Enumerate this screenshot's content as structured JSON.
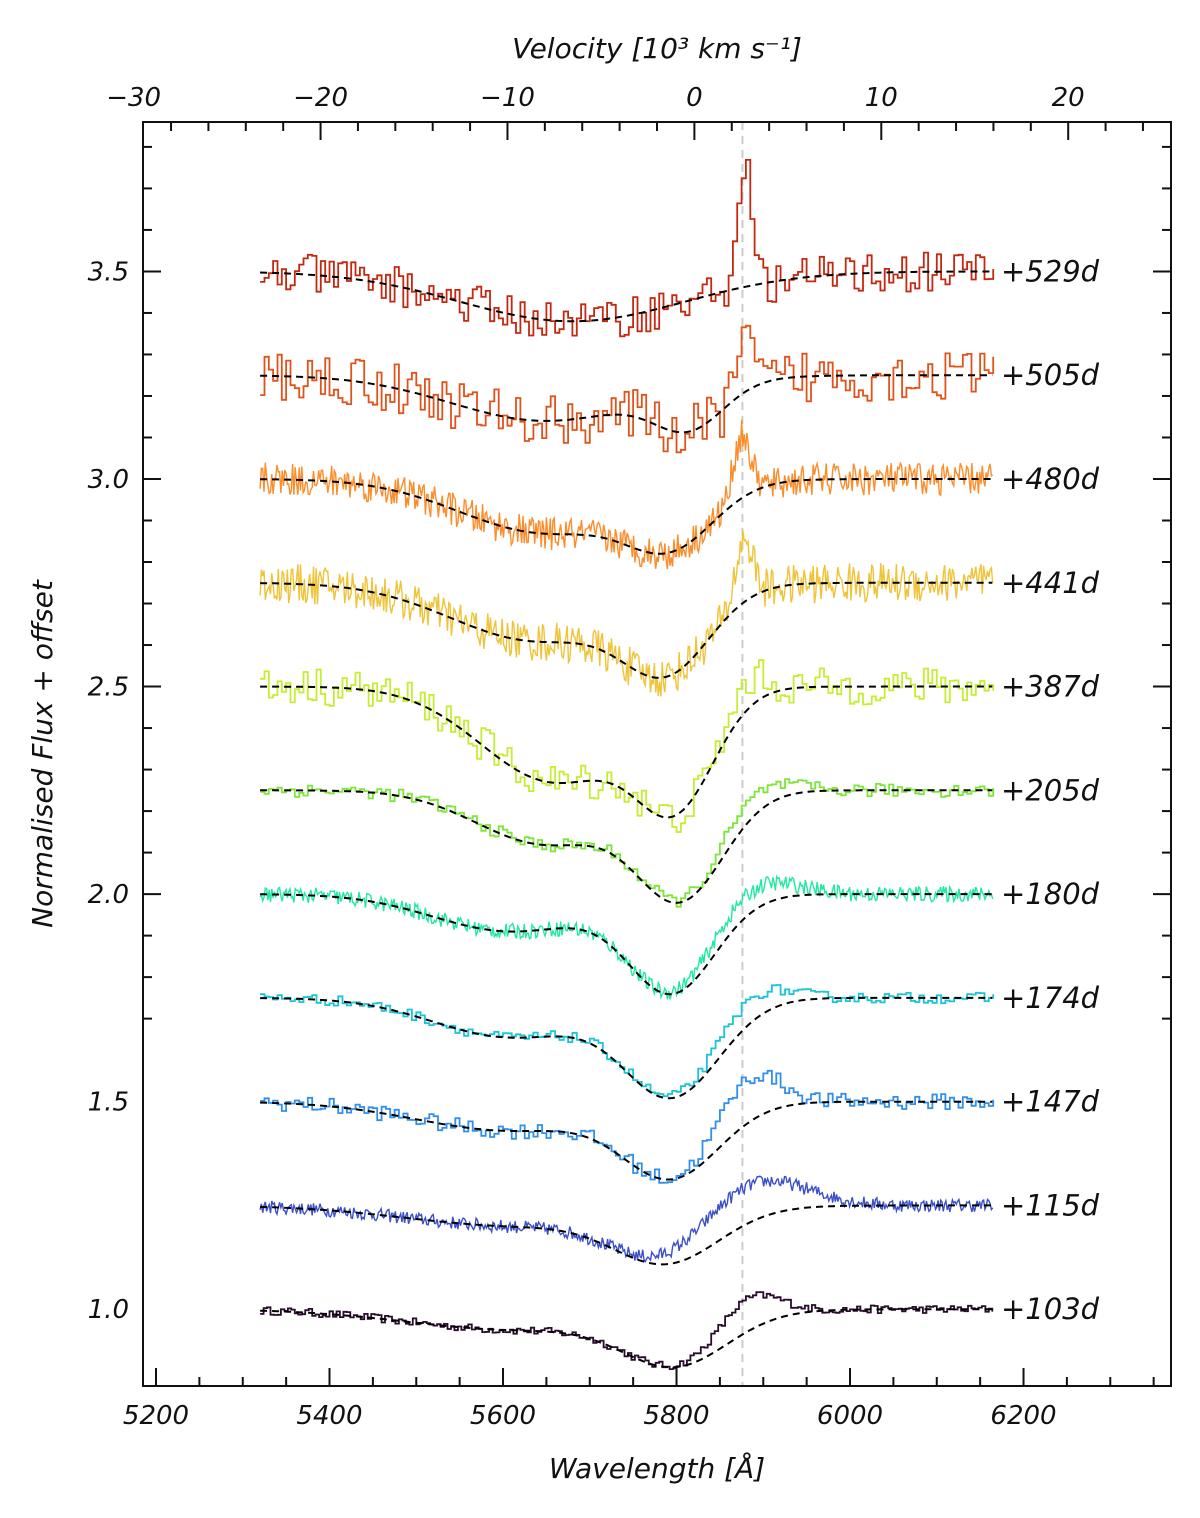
{
  "chart_data": {
    "type": "line",
    "title": "",
    "xlabel": "Wavelength [Å]",
    "ylabel": "Normalised Flux + offset",
    "top_xlabel": "Velocity [10³ km s⁻¹]",
    "xlim": [
      5185,
      6370
    ],
    "ylim": [
      0.815,
      3.86
    ],
    "top_xlim": [
      -29.5,
      25.5
    ],
    "x_ticks": [
      5200,
      5400,
      5600,
      5800,
      6000,
      6200
    ],
    "x_tick_labels": [
      "5200",
      "5400",
      "5600",
      "5800",
      "6000",
      "6200"
    ],
    "y_ticks": [
      1.0,
      1.5,
      2.0,
      2.5,
      3.0,
      3.5
    ],
    "y_tick_labels": [
      "1.0",
      "1.5",
      "2.0",
      "2.5",
      "3.0",
      "3.5"
    ],
    "top_ticks": [
      -30,
      -20,
      -10,
      0,
      10,
      20
    ],
    "top_tick_labels": [
      "−30",
      "−20",
      "−10",
      "0",
      "10",
      "20"
    ],
    "wavelength_range": [
      5320,
      6165
    ],
    "rest_wavelength": 5876,
    "series": [
      {
        "name": "+103d",
        "offset": 1.0,
        "color": "#2a0d2e",
        "label_color": "#000000",
        "sampling": 4,
        "noise": 0.006,
        "baseline": 1.0,
        "fit_components": [
          [
            5800,
            60,
            0.12
          ],
          [
            5620,
            130,
            0.05
          ]
        ],
        "emission": [
          [
            5880,
            35,
            0.08
          ]
        ]
      },
      {
        "name": "+115d",
        "offset": 1.25,
        "color": "#3c50c8",
        "label_color": "#000000",
        "sampling": 1.5,
        "noise": 0.01,
        "baseline": 1.25,
        "fit_components": [
          [
            5790,
            60,
            0.12
          ],
          [
            5620,
            130,
            0.05
          ]
        ],
        "emission": [
          [
            5880,
            60,
            0.09
          ]
        ]
      },
      {
        "name": "+147d",
        "offset": 1.5,
        "color": "#3390ea",
        "label_color": "#000000",
        "sampling": 5,
        "noise": 0.012,
        "baseline": 1.5,
        "fit_components": [
          [
            5795,
            55,
            0.17
          ],
          [
            5610,
            110,
            0.07
          ]
        ],
        "emission": [
          [
            5880,
            35,
            0.11
          ]
        ]
      },
      {
        "name": "+174d",
        "offset": 1.75,
        "color": "#1cc4d8",
        "label_color": "#000000",
        "sampling": 5,
        "noise": 0.008,
        "baseline": 1.75,
        "fit_components": [
          [
            5795,
            55,
            0.23
          ],
          [
            5610,
            90,
            0.095
          ]
        ],
        "emission": [
          [
            5880,
            40,
            0.06
          ]
        ]
      },
      {
        "name": "+180d",
        "offset": 2.0,
        "color": "#22e8a0",
        "label_color": "#000000",
        "sampling": 1.5,
        "noise": 0.012,
        "baseline": 2.0,
        "fit_components": [
          [
            5795,
            50,
            0.23
          ],
          [
            5610,
            90,
            0.09
          ]
        ],
        "emission": [
          [
            5885,
            45,
            0.05
          ]
        ]
      },
      {
        "name": "+205d",
        "offset": 2.25,
        "color": "#7ee53a",
        "label_color": "#000000",
        "sampling": 5,
        "noise": 0.01,
        "baseline": 2.25,
        "fit_components": [
          [
            5805,
            50,
            0.25
          ],
          [
            5650,
            80,
            0.13
          ]
        ],
        "emission": [
          [
            5880,
            40,
            0.05
          ]
        ]
      },
      {
        "name": "+387d",
        "offset": 2.5,
        "color": "#c4ee33",
        "label_color": "#ff0000",
        "sampling": 5,
        "noise": 0.028,
        "baseline": 2.5,
        "fit_components": [
          [
            5800,
            45,
            0.25
          ],
          [
            5660,
            85,
            0.23
          ]
        ],
        "emission": [
          [
            5880,
            20,
            0.07
          ]
        ]
      },
      {
        "name": "+441d",
        "offset": 2.75,
        "color": "#efc43a",
        "label_color": "#ff0000",
        "sampling": 1.5,
        "noise": 0.03,
        "baseline": 2.75,
        "fit_components": [
          [
            5790,
            50,
            0.18
          ],
          [
            5640,
            100,
            0.14
          ]
        ],
        "emission": [
          [
            5878,
            10,
            0.15
          ]
        ]
      },
      {
        "name": "+480d",
        "offset": 3.0,
        "color": "#fb8e2c",
        "label_color": "#ff0000",
        "sampling": 1.5,
        "noise": 0.025,
        "baseline": 3.0,
        "fit_components": [
          [
            5795,
            50,
            0.13
          ],
          [
            5650,
            100,
            0.13
          ]
        ],
        "emission": [
          [
            5875,
            10,
            0.15
          ]
        ]
      },
      {
        "name": "+505d",
        "offset": 3.25,
        "color": "#e0531b",
        "label_color": "#ff0000",
        "sampling": 5,
        "noise": 0.04,
        "baseline": 3.25,
        "fit_components": [
          [
            5815,
            40,
            0.1
          ],
          [
            5650,
            110,
            0.11
          ]
        ],
        "emission": [
          [
            5876,
            10,
            0.12
          ]
        ]
      },
      {
        "name": "+529d",
        "offset": 3.5,
        "color": "#c42810",
        "label_color": "#ff0000",
        "sampling": 5,
        "noise": 0.03,
        "baseline": 3.5,
        "fit_components": [
          [
            5680,
            130,
            0.12
          ]
        ],
        "emission": [
          [
            5876,
            8,
            0.3
          ]
        ]
      }
    ],
    "reference_line": {
      "wavelength": 5876,
      "style": "dashed",
      "color": "#cccccc"
    }
  }
}
